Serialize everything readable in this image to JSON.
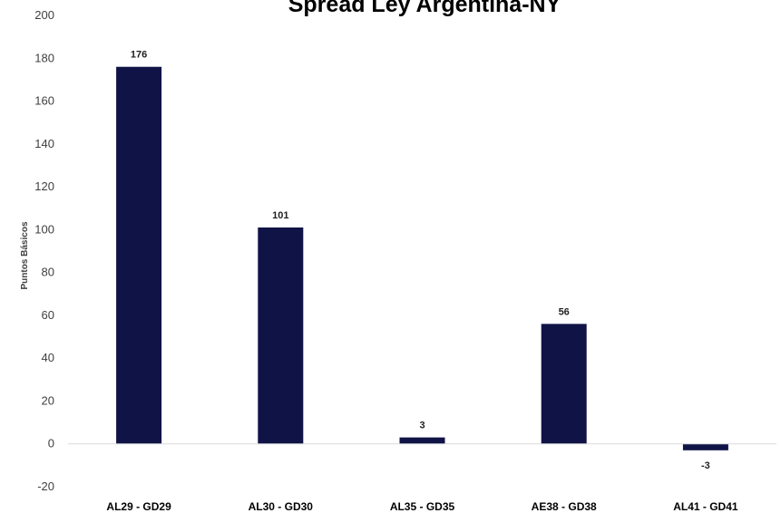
{
  "chart_data": {
    "type": "bar",
    "title": "Spread Ley Argentina-NY",
    "xlabel": "",
    "ylabel": "Puntos Básicos",
    "categories": [
      "AL29 - GD29",
      "AL30 - GD30",
      "AL35 - GD35",
      "AE38 - GD38",
      "AL41 - GD41"
    ],
    "values": [
      176,
      101,
      3,
      56,
      -3
    ],
    "data_labels": [
      "176",
      "101",
      "3",
      "56",
      "-3"
    ],
    "ylim": [
      -20,
      200
    ],
    "yticks": [
      -20,
      0,
      20,
      40,
      60,
      80,
      100,
      120,
      140,
      160,
      180,
      200
    ],
    "grid": false,
    "legend": "none",
    "colors": {
      "bar": "#101346",
      "axis": "#d9d9d9"
    }
  }
}
